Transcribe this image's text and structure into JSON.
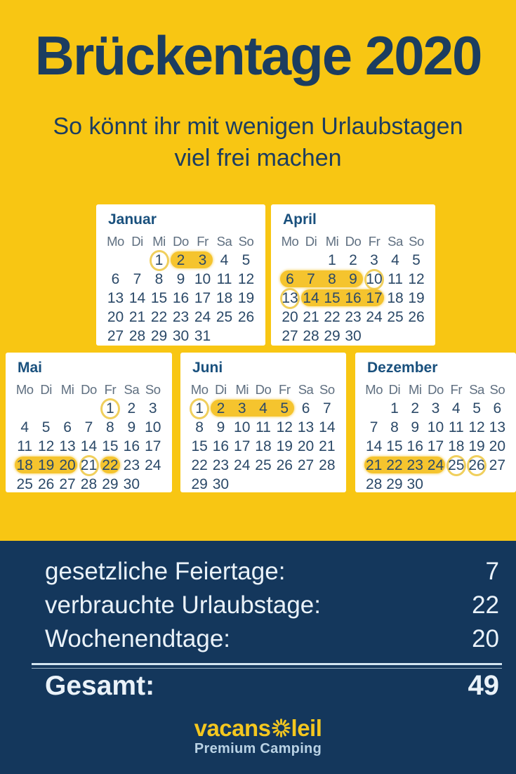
{
  "header": {
    "title": "Brückentage 2020",
    "subtitle_line1": "So könnt ihr mit wenigen Urlaubstagen",
    "subtitle_line2": "viel frei machen"
  },
  "weekdays": [
    "Mo",
    "Di",
    "Mi",
    "Do",
    "Fr",
    "Sa",
    "So"
  ],
  "calendars": [
    {
      "name": "Januar",
      "weeks": [
        [
          "",
          "",
          "1",
          "2",
          "3",
          "4",
          "5"
        ],
        [
          "6",
          "7",
          "8",
          "9",
          "10",
          "11",
          "12"
        ],
        [
          "13",
          "14",
          "15",
          "16",
          "17",
          "18",
          "19"
        ],
        [
          "20",
          "21",
          "22",
          "23",
          "24",
          "25",
          "26"
        ],
        [
          "27",
          "28",
          "29",
          "30",
          "31",
          "",
          ""
        ]
      ],
      "pills": [
        {
          "week": 0,
          "from_col": 3,
          "to_col": 4,
          "days": "2-3"
        }
      ],
      "circles": [
        {
          "week": 0,
          "col": 2,
          "day": "1"
        }
      ]
    },
    {
      "name": "April",
      "weeks": [
        [
          "",
          "",
          "1",
          "2",
          "3",
          "4",
          "5"
        ],
        [
          "6",
          "7",
          "8",
          "9",
          "10",
          "11",
          "12"
        ],
        [
          "13",
          "14",
          "15",
          "16",
          "17",
          "18",
          "19"
        ],
        [
          "20",
          "21",
          "22",
          "23",
          "24",
          "25",
          "26"
        ],
        [
          "27",
          "28",
          "29",
          "30",
          "",
          "",
          ""
        ]
      ],
      "pills": [
        {
          "week": 1,
          "from_col": 0,
          "to_col": 3,
          "days": "6-9"
        },
        {
          "week": 2,
          "from_col": 1,
          "to_col": 4,
          "days": "14-17"
        }
      ],
      "circles": [
        {
          "week": 1,
          "col": 4,
          "day": "10"
        },
        {
          "week": 2,
          "col": 0,
          "day": "13"
        }
      ]
    },
    {
      "name": "Mai",
      "weeks": [
        [
          "",
          "",
          "",
          "",
          "1",
          "2",
          "3"
        ],
        [
          "4",
          "5",
          "6",
          "7",
          "8",
          "9",
          "10"
        ],
        [
          "11",
          "12",
          "13",
          "14",
          "15",
          "16",
          "17"
        ],
        [
          "18",
          "19",
          "20",
          "21",
          "22",
          "23",
          "24"
        ],
        [
          "25",
          "26",
          "27",
          "28",
          "29",
          "30",
          ""
        ]
      ],
      "pills": [
        {
          "week": 3,
          "from_col": 0,
          "to_col": 2,
          "days": "18-20"
        },
        {
          "week": 3,
          "from_col": 4,
          "to_col": 4,
          "days": "22"
        }
      ],
      "circles": [
        {
          "week": 0,
          "col": 4,
          "day": "1"
        },
        {
          "week": 3,
          "col": 3,
          "day": "21"
        }
      ]
    },
    {
      "name": "Juni",
      "weeks": [
        [
          "1",
          "2",
          "3",
          "4",
          "5",
          "6",
          "7"
        ],
        [
          "8",
          "9",
          "10",
          "11",
          "12",
          "13",
          "14"
        ],
        [
          "15",
          "16",
          "17",
          "18",
          "19",
          "20",
          "21"
        ],
        [
          "22",
          "23",
          "24",
          "25",
          "26",
          "27",
          "28"
        ],
        [
          "29",
          "30",
          "",
          "",
          "",
          "",
          ""
        ]
      ],
      "pills": [
        {
          "week": 0,
          "from_col": 1,
          "to_col": 4,
          "days": "2-5"
        }
      ],
      "circles": [
        {
          "week": 0,
          "col": 0,
          "day": "1"
        }
      ]
    },
    {
      "name": "Dezember",
      "weeks": [
        [
          "",
          "1",
          "2",
          "3",
          "4",
          "5",
          "6"
        ],
        [
          "7",
          "8",
          "9",
          "10",
          "11",
          "12",
          "13"
        ],
        [
          "14",
          "15",
          "16",
          "17",
          "18",
          "19",
          "20"
        ],
        [
          "21",
          "22",
          "23",
          "24",
          "25",
          "26",
          "27"
        ],
        [
          "28",
          "29",
          "30",
          "",
          "",
          "",
          ""
        ]
      ],
      "pills": [
        {
          "week": 3,
          "from_col": 0,
          "to_col": 3,
          "days": "21-24"
        }
      ],
      "circles": [
        {
          "week": 3,
          "col": 4,
          "day": "25"
        },
        {
          "week": 3,
          "col": 5,
          "day": "26"
        }
      ]
    }
  ],
  "summary": {
    "rows": [
      {
        "label": "gesetzliche Feiertage:",
        "value": "7"
      },
      {
        "label": "verbrauchte Urlaubstage:",
        "value": "22"
      },
      {
        "label": "Wochenendtage:",
        "value": "20"
      }
    ],
    "total": {
      "label": "Gesamt:",
      "value": "49"
    }
  },
  "logo": {
    "brand_prefix": "vacans",
    "brand_suffix": "leil",
    "sun_icon": "sun-icon",
    "tagline": "Premium Camping"
  },
  "colors": {
    "background_yellow": "#F8C613",
    "footer_navy": "#14375C",
    "title_text": "#1C3D60",
    "card_white": "#FFFFFF",
    "month_title_blue": "#19507D",
    "day_text": "#2B4968",
    "weekday_text": "#5F6F80",
    "highlight_marker": "#F5C42E",
    "circle_ring": "#F0CF5D",
    "summary_text": "#EAF2F9",
    "logo_yellow": "#F4C71F",
    "tagline_blue": "#B9D2E4"
  }
}
